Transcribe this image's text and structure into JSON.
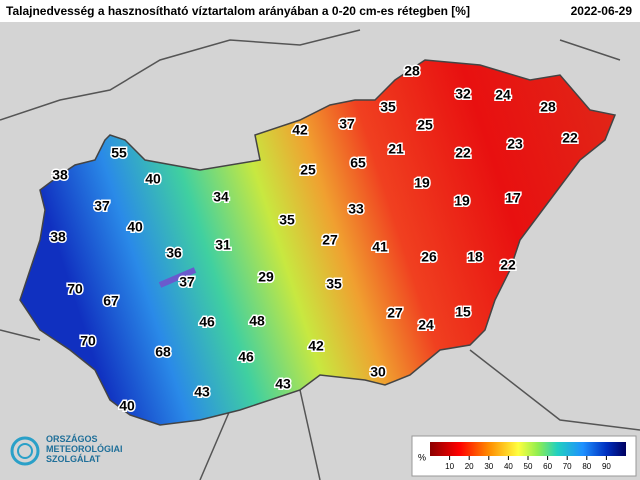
{
  "header": {
    "title": "Talajnedvesség a hasznosítható víztartalom arányában a 0-20 cm-es rétegben [%]",
    "date": "2022-06-29"
  },
  "map": {
    "values": [
      28,
      32,
      24,
      35,
      28,
      42,
      37,
      25,
      21,
      22,
      23,
      22,
      55,
      65,
      25,
      38,
      40,
      19,
      34,
      19,
      17,
      37,
      33,
      35,
      40,
      38,
      27,
      41,
      31,
      36,
      26,
      18,
      22,
      37,
      29,
      35,
      70,
      67,
      27,
      15,
      46,
      48,
      24,
      70,
      42,
      68,
      46,
      30,
      43,
      43,
      40
    ]
  },
  "legend": {
    "unit": "%",
    "range": [
      0,
      100
    ],
    "ticks": [
      10,
      20,
      30,
      40,
      50,
      60,
      70,
      80,
      90
    ]
  },
  "logo": {
    "lines": [
      "ORSZÁGOS",
      "METEOROLÓGIAI",
      "SZOLGÁLAT"
    ]
  }
}
